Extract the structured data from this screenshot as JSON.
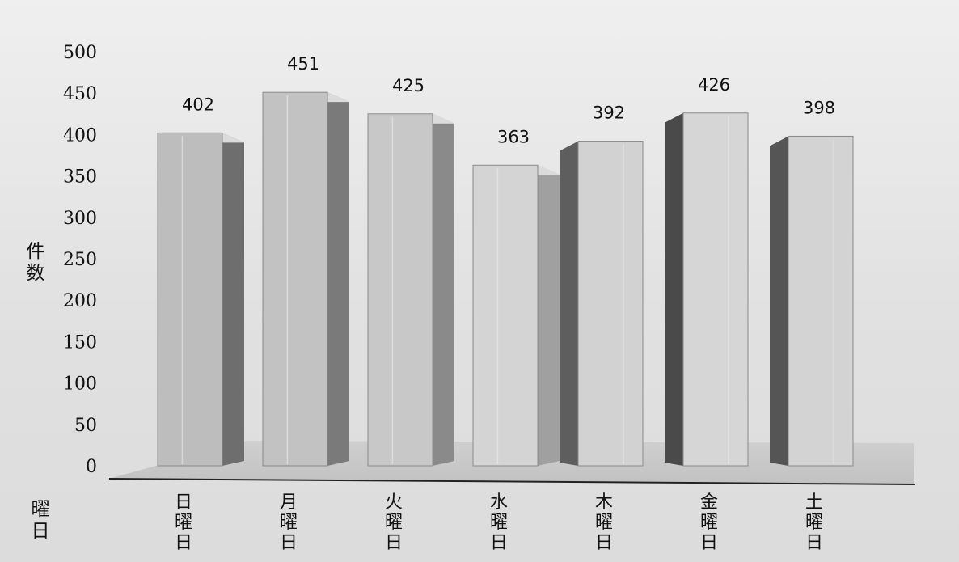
{
  "chart_data": {
    "type": "bar",
    "title": "",
    "xlabel": "曜日",
    "ylabel": "件数",
    "categories": [
      "日曜日",
      "月曜日",
      "火曜日",
      "水曜日",
      "木曜日",
      "金曜日",
      "土曜日"
    ],
    "values": [
      402,
      451,
      425,
      363,
      392,
      426,
      398
    ],
    "ylim": [
      0,
      500
    ],
    "yticks": [
      0,
      50,
      100,
      150,
      200,
      250,
      300,
      350,
      400,
      450,
      500
    ],
    "grid": false,
    "legend": "none",
    "style": "3d-column",
    "colors": {
      "bar_front": [
        "#bdbdbd",
        "#c2c2c2",
        "#c8c8c8",
        "#d4d4d4",
        "#d2d2d2",
        "#d6d6d6",
        "#d3d3d3"
      ],
      "bar_side": [
        "#6e6e6e",
        "#7a7a7a",
        "#8a8a8a",
        "#a0a0a0",
        "#5e5e5e",
        "#4a4a4a",
        "#555555"
      ],
      "floor": "#c9c9c9",
      "axis": "#222222"
    }
  }
}
